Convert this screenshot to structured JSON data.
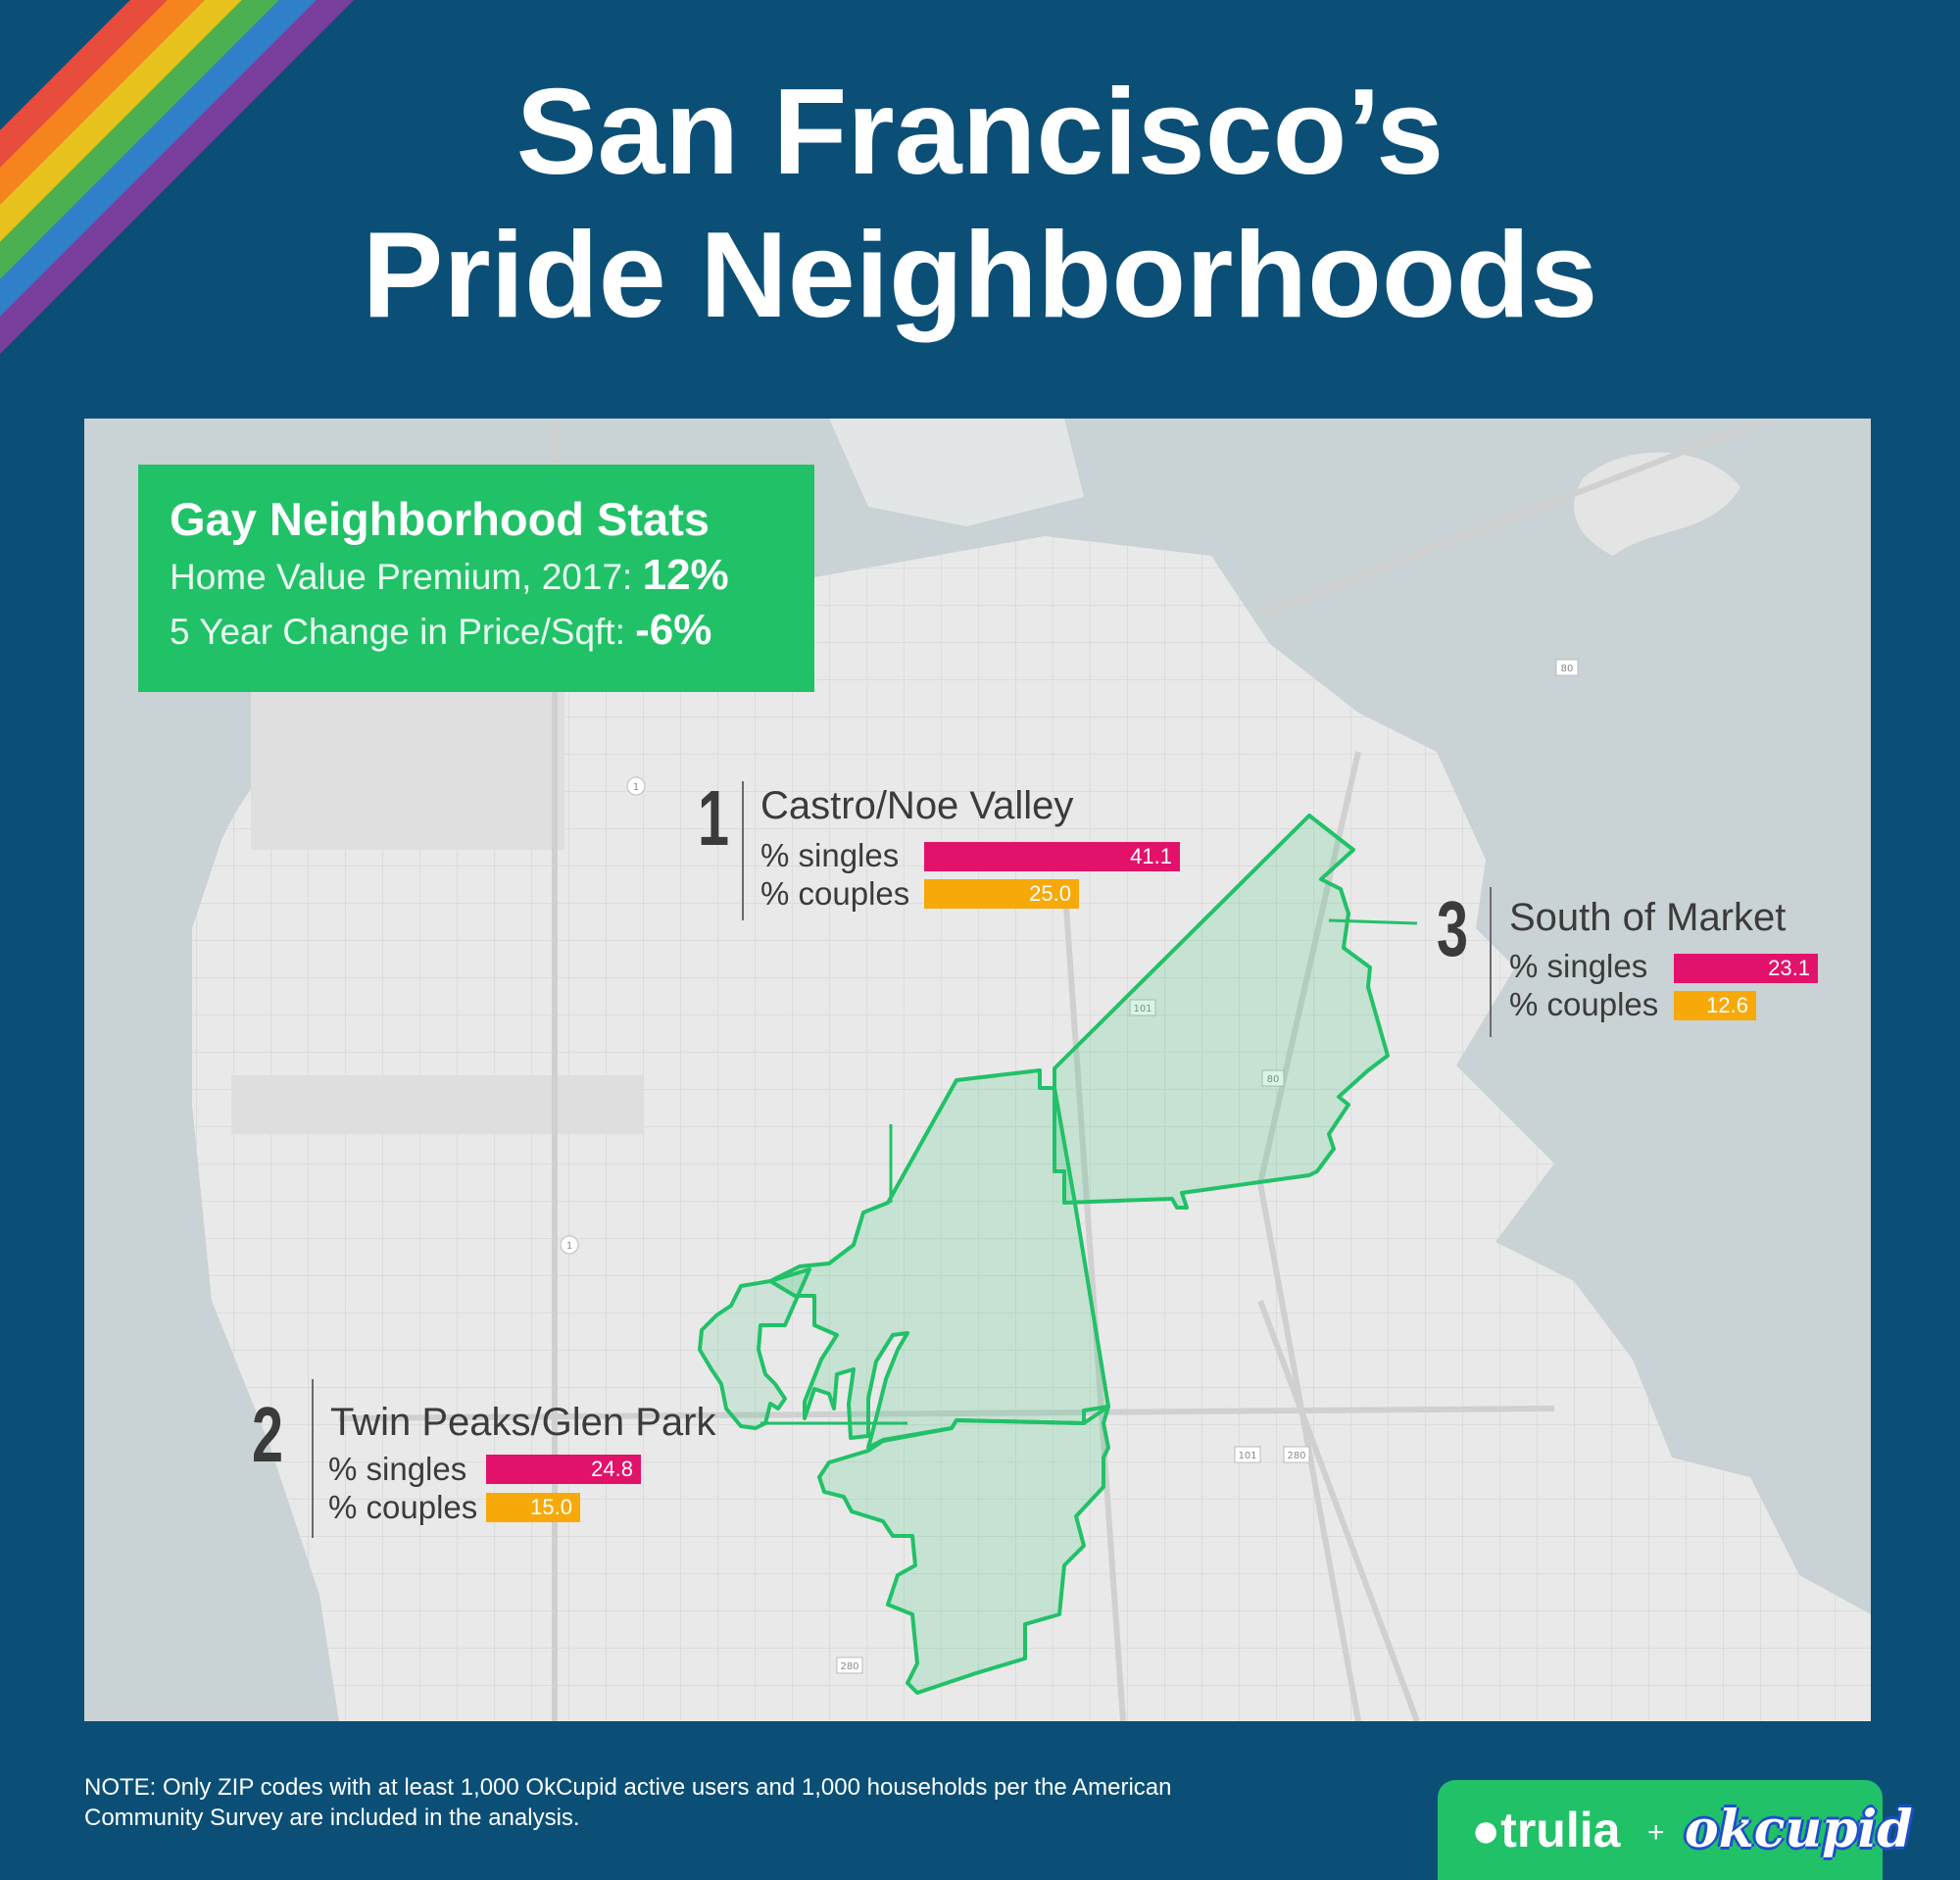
{
  "header": {
    "title_line1": "San Francisco’s",
    "title_line2": "Pride Neighborhoods"
  },
  "stats": {
    "title": "Gay Neighborhood Stats",
    "home_value_label": "Home Value Premium, 2017:",
    "home_value_value": "12%",
    "price_change_label": "5 Year Change in Price/Sqft:",
    "price_change_value": "-6%"
  },
  "neighborhoods": [
    {
      "rank": "1",
      "name": "Castro/Noe Valley",
      "singles_label": "% singles",
      "singles": "41.1",
      "couples_label": "% couples",
      "couples": "25.0"
    },
    {
      "rank": "2",
      "name": "Twin Peaks/Glen Park",
      "singles_label": "% singles",
      "singles": "24.8",
      "couples_label": "% couples",
      "couples": "15.0"
    },
    {
      "rank": "3",
      "name": "South of Market",
      "singles_label": "% singles",
      "singles": "23.1",
      "couples_label": "% couples",
      "couples": "12.6"
    }
  ],
  "map": {
    "highway_shields": [
      "1",
      "1",
      "101",
      "101",
      "280",
      "280",
      "80",
      "80"
    ]
  },
  "footer": {
    "note": "NOTE: Only ZIP codes with at least 1,000 OkCupid active users and 1,000 households per the American Community Survey are included in the analysis.",
    "brand_trulia": "trulia",
    "brand_plus": "+",
    "brand_okcupid": "okcupid"
  },
  "colors": {
    "background": "#0b4f77",
    "water": "#c9d2d4",
    "land": "#e9e9e9",
    "highlight": "#21c168",
    "singles_bar": "#e2126b",
    "couples_bar": "#f7a90a",
    "rainbow": [
      "#e74c3c",
      "#f5841f",
      "#e8c21c",
      "#4caf50",
      "#2f80c9",
      "#7a3e9d"
    ]
  }
}
